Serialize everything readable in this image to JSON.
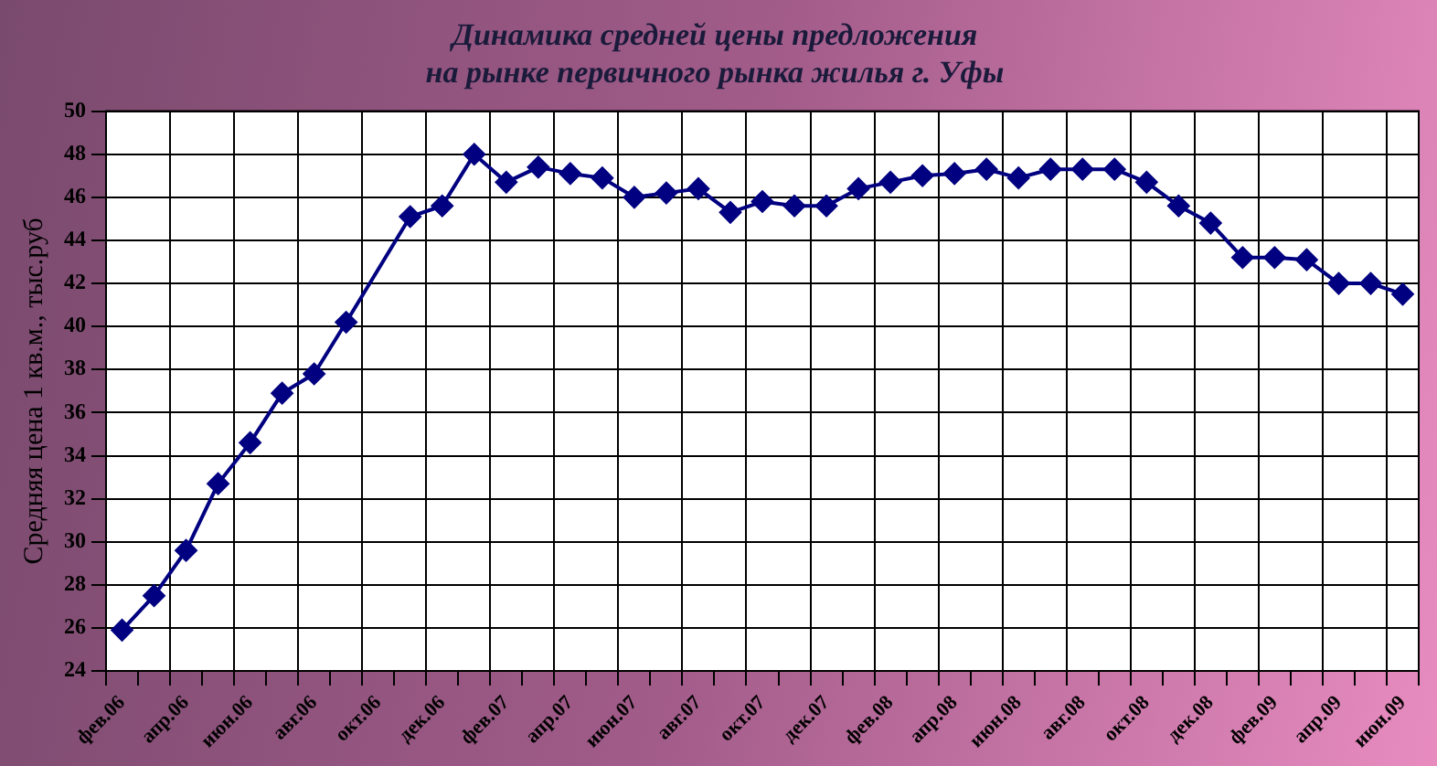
{
  "chart_data": {
    "type": "line",
    "title": "Динамика средней цены предложения\nна рынке первичного рынка жилья г. Уфы",
    "ylabel": "Средняя цена 1 кв.м., тыс.руб",
    "categories": [
      "фев.06",
      null,
      "апр.06",
      null,
      "июн.06",
      null,
      "авг.06",
      null,
      "окт.06",
      null,
      "дек.06",
      null,
      "фев.07",
      null,
      "апр.07",
      null,
      "июн.07",
      null,
      "авг.07",
      null,
      "окт.07",
      null,
      "дек.07",
      null,
      "фев.08",
      null,
      "апр.08",
      null,
      "июн.08",
      null,
      "авг.08",
      null,
      "окт.08",
      null,
      "дек.08",
      null,
      "фев.09",
      null,
      "апр.09",
      null,
      "июн.09"
    ],
    "series": [
      {
        "color": "#000080",
        "values": [
          25.9,
          27.5,
          29.6,
          32.7,
          34.6,
          36.9,
          37.8,
          40.2,
          null,
          45.1,
          45.6,
          48.0,
          46.7,
          47.4,
          47.1,
          46.9,
          46.0,
          46.2,
          46.4,
          45.3,
          45.8,
          45.6,
          45.6,
          46.4,
          46.7,
          47.0,
          47.1,
          47.3,
          46.9,
          47.3,
          47.3,
          47.3,
          46.7,
          45.6,
          44.8,
          43.2,
          43.2,
          43.1,
          42.0,
          42.0,
          41.5
        ]
      }
    ],
    "ylim": [
      24,
      50
    ],
    "yticks": [
      24,
      26,
      28,
      30,
      32,
      34,
      36,
      38,
      40,
      42,
      44,
      46,
      48,
      50
    ],
    "grid": true,
    "legend": false,
    "marker": "diamond",
    "line_style": "solid"
  }
}
